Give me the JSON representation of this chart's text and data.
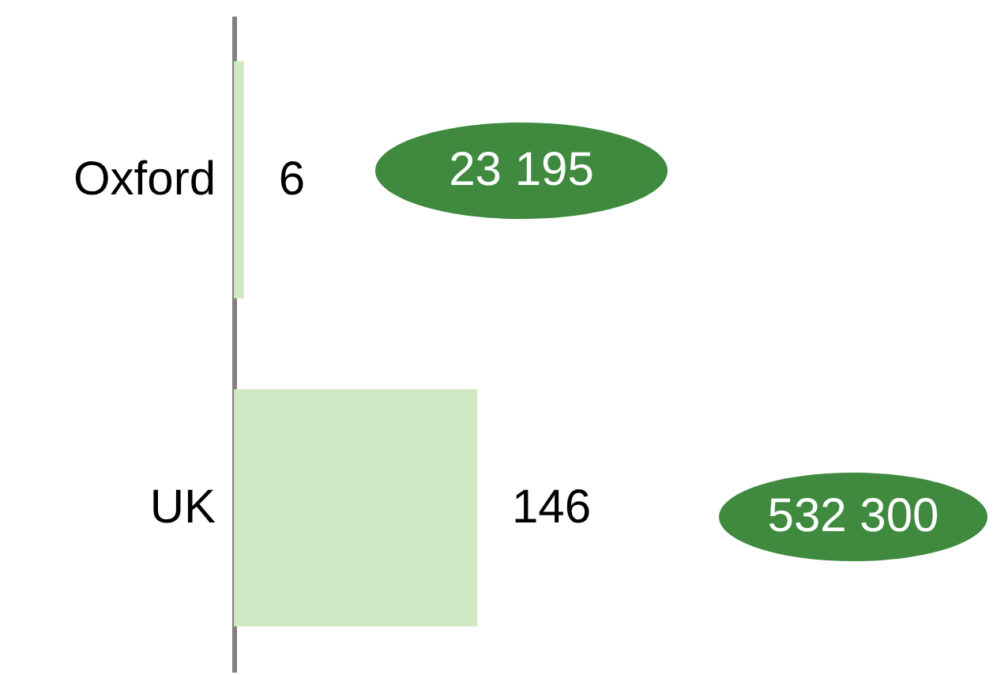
{
  "chart_data": {
    "type": "bar",
    "orientation": "horizontal",
    "categories": [
      "Oxford",
      "UK"
    ],
    "values": [
      6,
      146
    ],
    "color": "#cfe8c4",
    "data_labels": true,
    "grid": false,
    "annotations": [
      "23 195",
      "532 300"
    ]
  }
}
